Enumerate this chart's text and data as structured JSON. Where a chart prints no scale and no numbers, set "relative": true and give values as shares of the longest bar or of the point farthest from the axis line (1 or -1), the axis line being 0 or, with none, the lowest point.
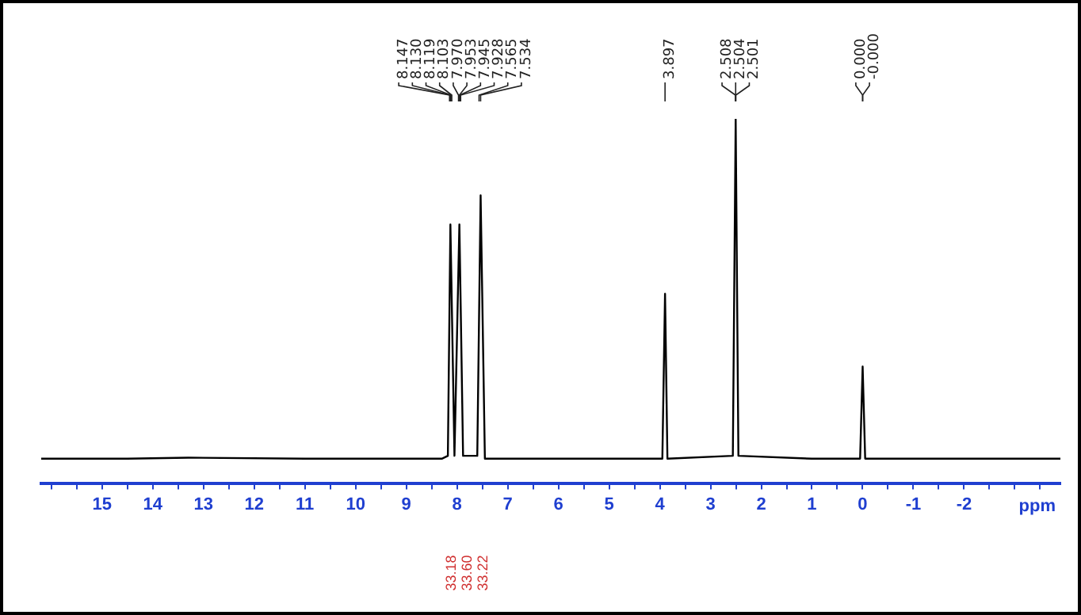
{
  "chart_data": {
    "type": "line",
    "relative": true,
    "xlabel": "ppm",
    "color": "#000000",
    "xlim": [
      16.2,
      -3.9
    ],
    "xticks": [
      {
        "value": 16,
        "label": null
      },
      {
        "value": 15.5,
        "label": null
      },
      15,
      {
        "value": 14.5,
        "label": null
      },
      14,
      {
        "value": 13.5,
        "label": null
      },
      13,
      {
        "value": 12.5,
        "label": null
      },
      12,
      {
        "value": 11.5,
        "label": null
      },
      11,
      {
        "value": 10.5,
        "label": null
      },
      10,
      {
        "value": 9.5,
        "label": null
      },
      9,
      {
        "value": 8.5,
        "label": null
      },
      8,
      {
        "value": 7.5,
        "label": null
      },
      7,
      {
        "value": 6.5,
        "label": null
      },
      6,
      {
        "value": 5.5,
        "label": null
      },
      5,
      {
        "value": 4.5,
        "label": null
      },
      4,
      {
        "value": 3.5,
        "label": null
      },
      3,
      {
        "value": 2.5,
        "label": null
      },
      2,
      {
        "value": 1.5,
        "label": null
      },
      1,
      {
        "value": 0.5,
        "label": null
      },
      0,
      {
        "value": -0.5,
        "label": null
      },
      -1,
      {
        "value": -1.5,
        "label": null
      },
      -2,
      {
        "value": -2.5,
        "label": null
      },
      {
        "value": -3,
        "label": null
      },
      {
        "value": -3.5,
        "label": null
      }
    ],
    "x": [
      16.2,
      14.5,
      13.3,
      11,
      9,
      8.3,
      8.18,
      8.13,
      8.05,
      7.953,
      7.88,
      7.6,
      7.534,
      7.45,
      5,
      3.95,
      3.897,
      3.85,
      2.56,
      2.504,
      2.45,
      1,
      0.05,
      0,
      -0.05,
      -2,
      -3.9
    ],
    "values": [
      0.067,
      0.067,
      0.07,
      0.067,
      0.067,
      0.067,
      0.075,
      0.71,
      0.075,
      0.71,
      0.075,
      0.075,
      0.79,
      0.067,
      0.067,
      0.067,
      0.52,
      0.067,
      0.075,
      1,
      0.075,
      0.067,
      0.067,
      0.32,
      0.067,
      0.067,
      0.067
    ],
    "annotations": [
      {
        "text": "8.147",
        "x": 8.147
      },
      {
        "text": "8.130",
        "x": 8.13
      },
      {
        "text": "8.119",
        "x": 8.119
      },
      {
        "text": "8.103",
        "x": 8.103
      },
      {
        "text": "7.970",
        "x": 7.97
      },
      {
        "text": "7.953",
        "x": 7.953
      },
      {
        "text": "7.945",
        "x": 7.945
      },
      {
        "text": "7.928",
        "x": 7.928
      },
      {
        "text": "7.565",
        "x": 7.565
      },
      {
        "text": "7.534",
        "x": 7.534
      },
      {
        "text": "3.897",
        "x": 3.897
      },
      {
        "text": "2.508",
        "x": 2.508
      },
      {
        "text": "2.504",
        "x": 2.504
      },
      {
        "text": "2.501",
        "x": 2.501
      },
      {
        "text": "0.000",
        "x": 0
      },
      {
        "text": "-0.000",
        "x": 0
      },
      "33.18",
      "33.60",
      "33.22"
    ]
  }
}
